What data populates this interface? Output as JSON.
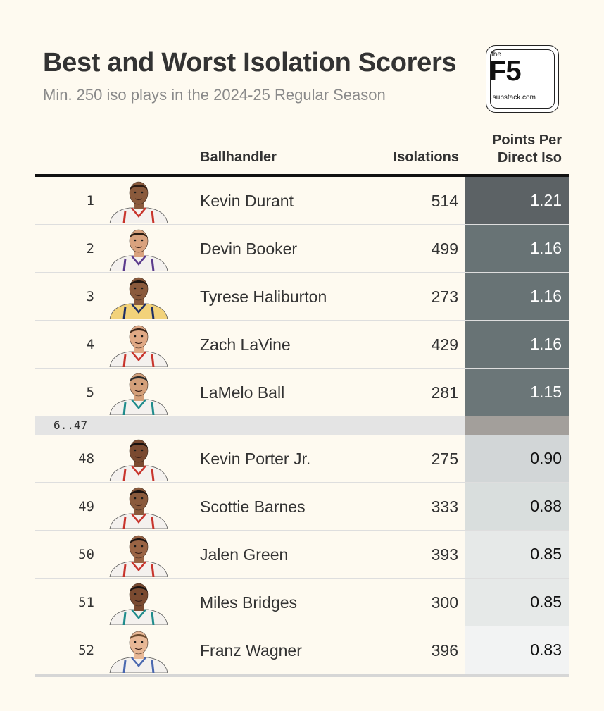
{
  "title": "Best and Worst Isolation Scorers",
  "subtitle": "Min. 250 iso plays in the 2024-25 Regular Season",
  "logo": {
    "the": "the",
    "f5": "F5",
    "domain": ".substack.com"
  },
  "columns": {
    "ballhandler": "Ballhandler",
    "isolations": "Isolations",
    "ppdi_line1": "Points Per",
    "ppdi_line2": "Direct Iso"
  },
  "gap_label": "6..47",
  "rows": [
    {
      "rank": "1",
      "name": "Kevin Durant",
      "isolations": "514",
      "ppdi": "1.21",
      "cell_color": "#5c6265",
      "text_color": "#ffffff",
      "skin": "#8a5a3c",
      "hair": "#2a1a12",
      "jersey": "#f4f1ee",
      "trim": "#c8342c"
    },
    {
      "rank": "2",
      "name": "Devin Booker",
      "isolations": "499",
      "ppdi": "1.16",
      "cell_color": "#687375",
      "text_color": "#ffffff",
      "skin": "#d9a27e",
      "hair": "#2b1d14",
      "jersey": "#f4f1ee",
      "trim": "#5a3a8c"
    },
    {
      "rank": "3",
      "name": "Tyrese Haliburton",
      "isolations": "273",
      "ppdi": "1.16",
      "cell_color": "#687375",
      "text_color": "#ffffff",
      "skin": "#8a5a3c",
      "hair": "#1e1510",
      "jersey": "#f2d27a",
      "trim": "#1d2e66"
    },
    {
      "rank": "4",
      "name": "Zach LaVine",
      "isolations": "429",
      "ppdi": "1.16",
      "cell_color": "#687375",
      "text_color": "#ffffff",
      "skin": "#e0a985",
      "hair": "#3a2418",
      "jersey": "#f4f1ee",
      "trim": "#c8342c"
    },
    {
      "rank": "5",
      "name": "LaMelo Ball",
      "isolations": "281",
      "ppdi": "1.15",
      "cell_color": "#6b7678",
      "text_color": "#ffffff",
      "skin": "#d4a07a",
      "hair": "#2a2a2a",
      "jersey": "#f4f1ee",
      "trim": "#1f8c8c"
    },
    {
      "rank": "48",
      "name": "Kevin Porter Jr.",
      "isolations": "275",
      "ppdi": "0.90",
      "cell_color": "#d2d6d7",
      "text_color": "#111111",
      "skin": "#7a4a30",
      "hair": "#1a1210",
      "jersey": "#f4f1ee",
      "trim": "#c8342c"
    },
    {
      "rank": "49",
      "name": "Scottie Barnes",
      "isolations": "333",
      "ppdi": "0.88",
      "cell_color": "#d9dedd",
      "text_color": "#111111",
      "skin": "#8a5a3c",
      "hair": "#1a1210",
      "jersey": "#f4f1ee",
      "trim": "#c8342c"
    },
    {
      "rank": "50",
      "name": "Jalen Green",
      "isolations": "393",
      "ppdi": "0.85",
      "cell_color": "#e6e9e8",
      "text_color": "#111111",
      "skin": "#9a6444",
      "hair": "#1a1210",
      "jersey": "#f4f1ee",
      "trim": "#c8342c"
    },
    {
      "rank": "51",
      "name": "Miles Bridges",
      "isolations": "300",
      "ppdi": "0.85",
      "cell_color": "#e6e9e8",
      "text_color": "#111111",
      "skin": "#7a4a30",
      "hair": "#1a1210",
      "jersey": "#f4f1ee",
      "trim": "#1f8c8c"
    },
    {
      "rank": "52",
      "name": "Franz Wagner",
      "isolations": "396",
      "ppdi": "0.83",
      "cell_color": "#f2f3f3",
      "text_color": "#111111",
      "skin": "#e8b896",
      "hair": "#6b4a2e",
      "jersey": "#f4f1ee",
      "trim": "#4a68b0"
    }
  ]
}
